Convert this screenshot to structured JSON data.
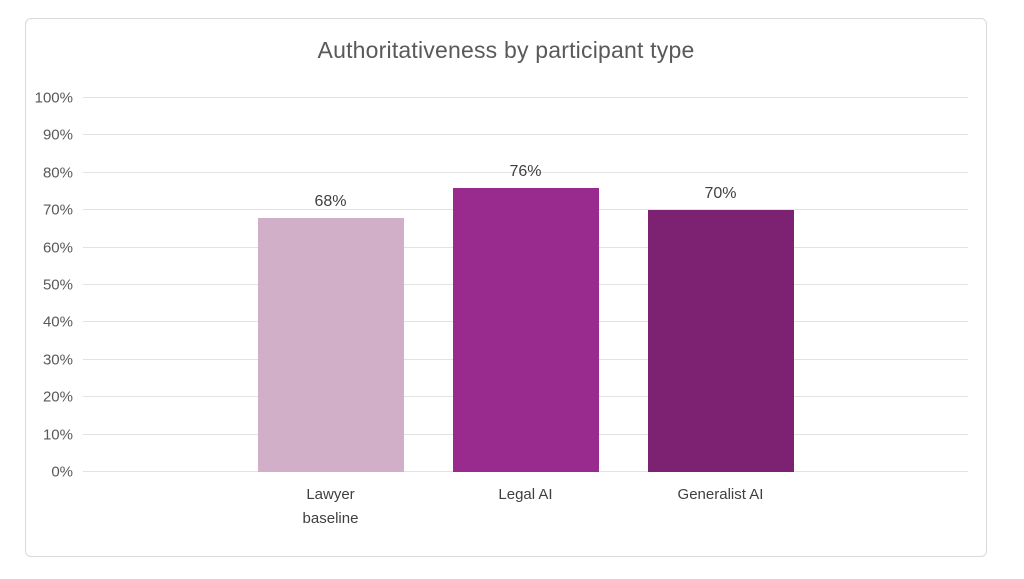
{
  "chart_data": {
    "type": "bar",
    "title": "Authoritativeness by participant type",
    "categories": [
      "Lawyer baseline",
      "Legal AI",
      "Generalist AI"
    ],
    "values": [
      68,
      76,
      70
    ],
    "data_labels": [
      "68%",
      "76%",
      "70%"
    ],
    "bar_colors": [
      "#D1AFC9",
      "#9A2B8E",
      "#7D2272"
    ],
    "xlabel": "",
    "ylabel": "",
    "ylim": [
      0,
      100
    ],
    "ytick_step": 10,
    "ytick_labels": [
      "0%",
      "10%",
      "20%",
      "30%",
      "40%",
      "50%",
      "60%",
      "70%",
      "80%",
      "90%",
      "100%"
    ],
    "grid": true,
    "legend": false,
    "data_label_position": "outside-end"
  },
  "colors": {
    "background": "#FFFFFF",
    "chart_border": "#D9D9D9",
    "gridline": "#E2E2E2",
    "title_text": "#595959",
    "axis_text": "#595959",
    "label_text": "#3F3F3F"
  }
}
